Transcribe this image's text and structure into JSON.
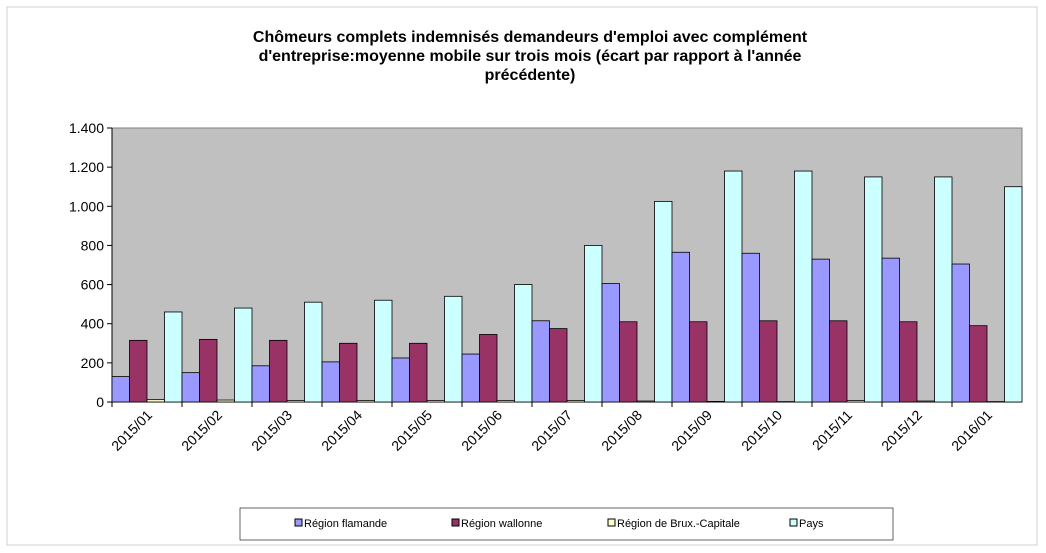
{
  "chart_data": {
    "type": "bar",
    "title": [
      "Chômeurs complets indemnisés demandeurs d'emploi avec complément",
      "d'entreprise:moyenne mobile sur trois mois (écart par rapport à l'année",
      "précédente)"
    ],
    "categories": [
      "2015/01",
      "2015/02",
      "2015/03",
      "2015/04",
      "2015/05",
      "2015/06",
      "2015/07",
      "2015/08",
      "2015/09",
      "2015/10",
      "2015/11",
      "2015/12",
      "2016/01"
    ],
    "series": [
      {
        "name": "Région flamande",
        "color": "#9999ff",
        "values": [
          130,
          150,
          185,
          205,
          225,
          245,
          415,
          605,
          765,
          760,
          730,
          735,
          705
        ]
      },
      {
        "name": "Région wallonne",
        "color": "#993366",
        "values": [
          315,
          320,
          315,
          300,
          300,
          345,
          375,
          410,
          410,
          415,
          415,
          410,
          390
        ]
      },
      {
        "name": "Région de Brux.-Capitale",
        "color": "#ffffcc",
        "values": [
          12,
          10,
          8,
          8,
          8,
          8,
          8,
          5,
          3,
          2,
          8,
          5,
          2
        ]
      },
      {
        "name": "Pays",
        "color": "#ccffff",
        "values": [
          460,
          480,
          510,
          520,
          540,
          600,
          800,
          1025,
          1180,
          1180,
          1150,
          1150,
          1100
        ]
      }
    ],
    "ylim": [
      0,
      1400
    ],
    "yticks": [
      0,
      200,
      400,
      600,
      800,
      {
        "value": 1000,
        "label": "1.000"
      },
      {
        "value": 1200,
        "label": "1.200"
      },
      {
        "value": 1400,
        "label": "1.400"
      }
    ],
    "grid": false,
    "legend": "bottom"
  }
}
